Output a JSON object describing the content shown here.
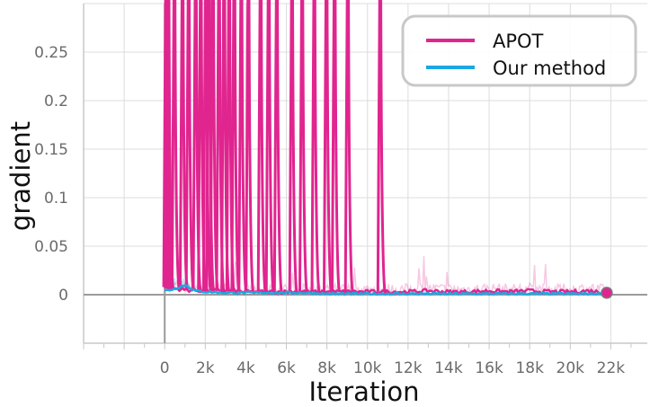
{
  "chart_data": {
    "type": "line",
    "title": "",
    "xlabel": "Iteration",
    "ylabel": "gradient",
    "xlim": [
      -4000,
      23800
    ],
    "ylim": [
      -0.05,
      0.3
    ],
    "grid": true,
    "legend_position": "top-right",
    "x_ticks": [
      0,
      2000,
      4000,
      6000,
      8000,
      10000,
      12000,
      14000,
      16000,
      18000,
      20000,
      22000
    ],
    "x_tick_labels": [
      "0",
      "2k",
      "4k",
      "6k",
      "8k",
      "10k",
      "12k",
      "14k",
      "16k",
      "18k",
      "20k",
      "22k"
    ],
    "y_ticks": [
      0,
      0.05,
      0.1,
      0.15,
      0.2,
      0.25
    ],
    "y_tick_labels": [
      "0",
      "0.05",
      "0.1",
      "0.15",
      "0.2",
      "0.25"
    ],
    "series": [
      {
        "name": "APOT",
        "color": "#e0258f",
        "spike_iterations": [
          40,
          150,
          450,
          850,
          1150,
          1500,
          1750,
          2000,
          2150,
          2350,
          2650,
          2900,
          3150,
          3400,
          3750,
          4100,
          4700,
          5100,
          5500,
          6250,
          6750,
          7350,
          7950,
          8350,
          9000,
          10600
        ],
        "baseline_x": [
          0,
          1000,
          2000,
          3000,
          4000,
          5000,
          6000,
          7000,
          8000,
          9000,
          10000,
          11000,
          12000,
          13000,
          14000,
          15000,
          16000,
          17000,
          18000,
          19000,
          20000,
          21000,
          21800
        ],
        "baseline_y": [
          0.008,
          0.005,
          0.004,
          0.004,
          0.003,
          0.003,
          0.003,
          0.003,
          0.003,
          0.003,
          0.003,
          0.003,
          0.003,
          0.004,
          0.003,
          0.003,
          0.004,
          0.003,
          0.004,
          0.003,
          0.003,
          0.004,
          0.002
        ]
      },
      {
        "name": "Our method",
        "color": "#1ba7e2",
        "baseline_x": [
          0,
          500,
          1000,
          1500,
          2000,
          3000,
          4000,
          5000,
          6000,
          7000,
          8000,
          9000,
          10000,
          12000,
          14000,
          16000,
          18000,
          20000,
          21800
        ],
        "baseline_y": [
          0.004,
          0.006,
          0.01,
          0.004,
          0.003,
          0.002,
          0.002,
          0.002,
          0.002,
          0.002,
          0.001,
          0.001,
          0.001,
          0.001,
          0.001,
          0.001,
          0.001,
          0.001,
          0.001
        ]
      }
    ],
    "final_value": {
      "x": 21800,
      "y": 0.002
    }
  }
}
